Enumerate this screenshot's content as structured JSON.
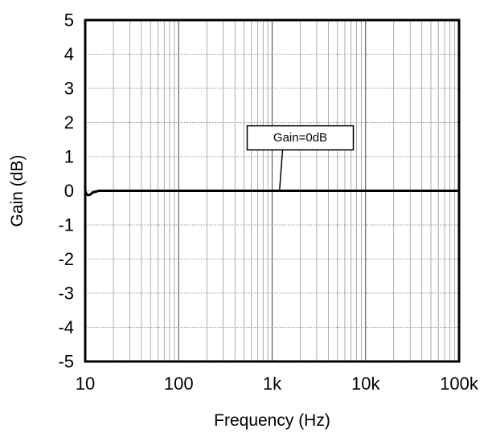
{
  "chart_data": {
    "type": "line",
    "title": "",
    "xlabel": "Frequency (Hz)",
    "ylabel": "Gain (dB)",
    "x_scale": "log",
    "xlim": [
      10,
      100000
    ],
    "ylim": [
      -5,
      5
    ],
    "grid": true,
    "x_ticks": [
      {
        "value": 10,
        "label": "10"
      },
      {
        "value": 100,
        "label": "100"
      },
      {
        "value": 1000,
        "label": "1k"
      },
      {
        "value": 10000,
        "label": "10k"
      },
      {
        "value": 100000,
        "label": "100k"
      }
    ],
    "y_ticks": [
      {
        "value": 5,
        "label": "5"
      },
      {
        "value": 4,
        "label": "4"
      },
      {
        "value": 3,
        "label": "3"
      },
      {
        "value": 2,
        "label": "2"
      },
      {
        "value": 1,
        "label": "1"
      },
      {
        "value": 0,
        "label": "0"
      },
      {
        "value": -1,
        "label": "-1"
      },
      {
        "value": -2,
        "label": "-2"
      },
      {
        "value": -3,
        "label": "-3"
      },
      {
        "value": -4,
        "label": "-4"
      },
      {
        "value": -5,
        "label": "-5"
      }
    ],
    "series": [
      {
        "color": "#000000",
        "points": [
          [
            10,
            0.0
          ],
          [
            10.3,
            -0.1
          ],
          [
            10.6,
            -0.12
          ],
          [
            11.2,
            -0.12
          ],
          [
            12,
            -0.05
          ],
          [
            14,
            0.0
          ],
          [
            20,
            0.0
          ],
          [
            100,
            0.0
          ],
          [
            1000,
            0.0
          ],
          [
            10000,
            0.0
          ],
          [
            100000,
            0.0
          ]
        ]
      }
    ],
    "annotation": {
      "text": "Gain=0dB",
      "x": 1200,
      "y": 0.0,
      "label_x": 2000,
      "label_y": 1.55
    }
  }
}
